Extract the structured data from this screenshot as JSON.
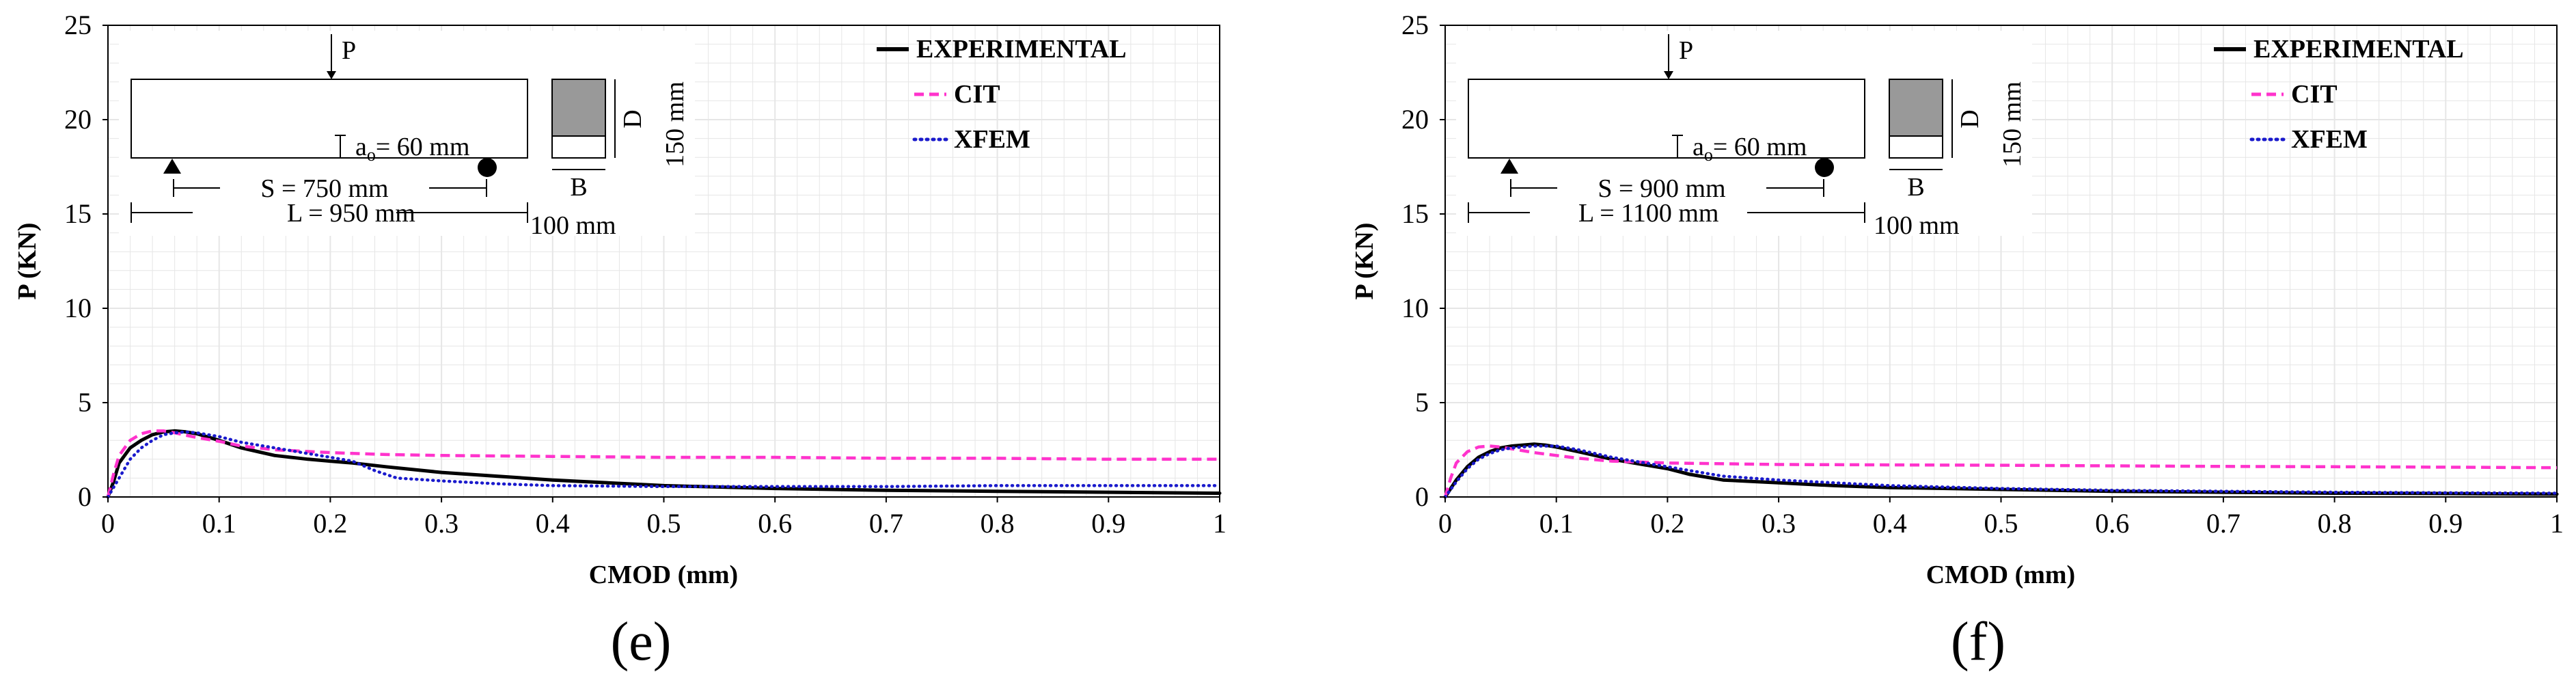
{
  "colors": {
    "experimental": "#000000",
    "cit": "#ff33cc",
    "xfem": "#1a1acc",
    "grid": "#e6e6e6",
    "section_fill": "#999999"
  },
  "chart_data": [
    {
      "type": "line",
      "caption": "(e)",
      "xlabel": "CMOD (mm)",
      "ylabel": "P (KN)",
      "xlim": [
        0,
        1
      ],
      "ylim": [
        0,
        25
      ],
      "xticks": [
        "0",
        "0.1",
        "0.2",
        "0.3",
        "0.4",
        "0.5",
        "0.6",
        "0.7",
        "0.8",
        "0.9",
        "1"
      ],
      "yticks": [
        "0",
        "5",
        "10",
        "15",
        "20",
        "25"
      ],
      "grid": true,
      "legend_position": "top-right",
      "diagram": {
        "load": "P",
        "notch_label": "a",
        "notch_sub": "o",
        "notch_value": "= 60 mm",
        "span": "S = 750 mm",
        "length": "L = 950 mm",
        "width_label": "B",
        "width_value": "100 mm",
        "depth_label": "D",
        "depth_value": "150 mm"
      },
      "series": [
        {
          "name": "EXPERIMENTAL",
          "style": "solid",
          "x": [
            0,
            0.005,
            0.01,
            0.02,
            0.03,
            0.04,
            0.05,
            0.06,
            0.07,
            0.08,
            0.1,
            0.12,
            0.15,
            0.18,
            0.2,
            0.22,
            0.25,
            0.3,
            0.35,
            0.4,
            0.5,
            0.6,
            0.7,
            0.8,
            0.9,
            1.0
          ],
          "y": [
            0,
            0.8,
            1.8,
            2.6,
            3.0,
            3.3,
            3.45,
            3.5,
            3.45,
            3.35,
            3.0,
            2.6,
            2.2,
            2.0,
            1.9,
            1.8,
            1.6,
            1.3,
            1.1,
            0.9,
            0.6,
            0.45,
            0.35,
            0.3,
            0.25,
            0.2
          ]
        },
        {
          "name": "CIT",
          "style": "dashed",
          "x": [
            0,
            0.005,
            0.01,
            0.02,
            0.03,
            0.04,
            0.05,
            0.06,
            0.08,
            0.1,
            0.12,
            0.15,
            0.2,
            0.25,
            0.3,
            0.4,
            0.5,
            0.6,
            0.7,
            0.8,
            0.9,
            1.0
          ],
          "y": [
            0,
            1.2,
            2.2,
            3.0,
            3.35,
            3.5,
            3.5,
            3.4,
            3.15,
            2.95,
            2.7,
            2.5,
            2.35,
            2.25,
            2.2,
            2.15,
            2.1,
            2.1,
            2.05,
            2.05,
            2.0,
            2.0
          ]
        },
        {
          "name": "XFEM",
          "style": "dotted",
          "x": [
            0,
            0.01,
            0.02,
            0.03,
            0.04,
            0.05,
            0.06,
            0.07,
            0.08,
            0.1,
            0.12,
            0.15,
            0.18,
            0.2,
            0.22,
            0.24,
            0.26,
            0.3,
            0.35,
            0.4,
            0.5,
            0.6,
            0.7,
            0.8,
            0.9,
            1.0
          ],
          "y": [
            0,
            1.0,
            2.0,
            2.6,
            3.0,
            3.3,
            3.4,
            3.45,
            3.4,
            3.2,
            2.9,
            2.6,
            2.3,
            2.1,
            1.9,
            1.4,
            1.0,
            0.85,
            0.7,
            0.6,
            0.55,
            0.55,
            0.55,
            0.6,
            0.6,
            0.6
          ]
        }
      ]
    },
    {
      "type": "line",
      "caption": "(f)",
      "xlabel": "CMOD (mm)",
      "ylabel": "P (KN)",
      "xlim": [
        0,
        1
      ],
      "ylim": [
        0,
        25
      ],
      "xticks": [
        "0",
        "0.1",
        "0.2",
        "0.3",
        "0.4",
        "0.5",
        "0.6",
        "0.7",
        "0.8",
        "0.9",
        "1"
      ],
      "yticks": [
        "0",
        "5",
        "10",
        "15",
        "20",
        "25"
      ],
      "grid": true,
      "legend_position": "top-right",
      "diagram": {
        "load": "P",
        "notch_label": "a",
        "notch_sub": "o",
        "notch_value": "= 60 mm",
        "span": "S = 900 mm",
        "length": "L = 1100 mm",
        "width_label": "B",
        "width_value": "100 mm",
        "depth_label": "D",
        "depth_value": "150 mm"
      },
      "series": [
        {
          "name": "EXPERIMENTAL",
          "style": "solid",
          "x": [
            0,
            0.01,
            0.02,
            0.03,
            0.04,
            0.05,
            0.06,
            0.07,
            0.08,
            0.09,
            0.1,
            0.12,
            0.15,
            0.18,
            0.2,
            0.22,
            0.25,
            0.3,
            0.35,
            0.4,
            0.5,
            0.6,
            0.7,
            0.8,
            0.9,
            1.0
          ],
          "y": [
            0,
            0.9,
            1.6,
            2.1,
            2.4,
            2.6,
            2.7,
            2.75,
            2.8,
            2.75,
            2.65,
            2.4,
            2.0,
            1.7,
            1.5,
            1.2,
            0.9,
            0.75,
            0.6,
            0.5,
            0.4,
            0.3,
            0.25,
            0.2,
            0.18,
            0.15
          ]
        },
        {
          "name": "CIT",
          "style": "dashed",
          "x": [
            0,
            0.005,
            0.01,
            0.02,
            0.03,
            0.04,
            0.05,
            0.06,
            0.08,
            0.1,
            0.12,
            0.15,
            0.2,
            0.3,
            0.4,
            0.5,
            0.6,
            0.7,
            0.8,
            0.9,
            1.0
          ],
          "y": [
            0,
            1.0,
            1.8,
            2.4,
            2.65,
            2.7,
            2.65,
            2.55,
            2.35,
            2.2,
            2.05,
            1.9,
            1.8,
            1.72,
            1.7,
            1.68,
            1.65,
            1.62,
            1.6,
            1.58,
            1.55
          ]
        },
        {
          "name": "XFEM",
          "style": "dotted",
          "x": [
            0,
            0.01,
            0.02,
            0.03,
            0.04,
            0.05,
            0.06,
            0.08,
            0.1,
            0.12,
            0.15,
            0.18,
            0.2,
            0.22,
            0.25,
            0.3,
            0.35,
            0.4,
            0.5,
            0.6,
            0.7,
            0.8,
            0.9,
            1.0
          ],
          "y": [
            0,
            0.8,
            1.5,
            2.0,
            2.3,
            2.5,
            2.6,
            2.7,
            2.7,
            2.5,
            2.1,
            1.8,
            1.6,
            1.4,
            1.1,
            0.9,
            0.75,
            0.6,
            0.45,
            0.35,
            0.3,
            0.25,
            0.22,
            0.2
          ]
        }
      ]
    }
  ]
}
